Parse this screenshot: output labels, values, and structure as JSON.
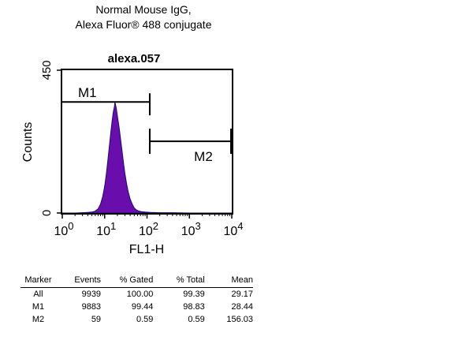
{
  "title_lines": [
    "Normal Mouse IgG,",
    "Alexa Fluor® 488 conjugate"
  ],
  "chart_data": {
    "type": "area",
    "title": "alexa.057",
    "xlabel": "FL1-H",
    "ylabel": "Counts",
    "x_scale": "log",
    "xlim": [
      1,
      10000
    ],
    "ylim": [
      0,
      450
    ],
    "x_ticks": [
      {
        "base": "10",
        "exp": "0",
        "value": 1
      },
      {
        "base": "10",
        "exp": "1",
        "value": 10
      },
      {
        "base": "10",
        "exp": "2",
        "value": 100
      },
      {
        "base": "10",
        "exp": "3",
        "value": 1000
      },
      {
        "base": "10",
        "exp": "4",
        "value": 10000
      }
    ],
    "y_ticks": [
      {
        "label": "0",
        "value": 0
      },
      {
        "label": "450",
        "value": 450
      }
    ],
    "series": [
      {
        "color": "#6a0dad",
        "points": [
          [
            1.0,
            0
          ],
          [
            2.0,
            0
          ],
          [
            3.0,
            1
          ],
          [
            4.0,
            2
          ],
          [
            5.0,
            3
          ],
          [
            6.0,
            6
          ],
          [
            7.0,
            13
          ],
          [
            8.0,
            28
          ],
          [
            9.0,
            52
          ],
          [
            10.0,
            85
          ],
          [
            11.0,
            125
          ],
          [
            12.0,
            170
          ],
          [
            13.0,
            215
          ],
          [
            14.0,
            255
          ],
          [
            15.0,
            290
          ],
          [
            16.0,
            318
          ],
          [
            17.0,
            335
          ],
          [
            17.5,
            349
          ],
          [
            18.0,
            342
          ],
          [
            19.0,
            327
          ],
          [
            20.0,
            306
          ],
          [
            22.0,
            268
          ],
          [
            24.0,
            228
          ],
          [
            26.0,
            190
          ],
          [
            28.0,
            155
          ],
          [
            30.0,
            125
          ],
          [
            33.0,
            92
          ],
          [
            36.0,
            66
          ],
          [
            40.0,
            44
          ],
          [
            45.0,
            27
          ],
          [
            50.0,
            16
          ],
          [
            57.0,
            9
          ],
          [
            65.0,
            6
          ],
          [
            75.0,
            4
          ],
          [
            90.0,
            3
          ],
          [
            120.0,
            2
          ],
          [
            200.0,
            1
          ],
          [
            400.0,
            1
          ],
          [
            1000.0,
            0
          ],
          [
            10000.0,
            0
          ]
        ]
      }
    ],
    "markers": [
      {
        "label": "M1",
        "range": [
          1,
          116
        ],
        "y": 350
      },
      {
        "label": "M2",
        "range": [
          116,
          10000
        ],
        "y": 226
      }
    ]
  },
  "stats_table": {
    "headers": [
      "Marker",
      "Events",
      "% Gated",
      "% Total",
      "Mean"
    ],
    "rows": [
      [
        "All",
        "9939",
        "100.00",
        "99.39",
        "29.17"
      ],
      [
        "M1",
        "9883",
        "99.44",
        "98.83",
        "28.44"
      ],
      [
        "M2",
        "59",
        "0.59",
        "0.59",
        "156.03"
      ]
    ]
  }
}
